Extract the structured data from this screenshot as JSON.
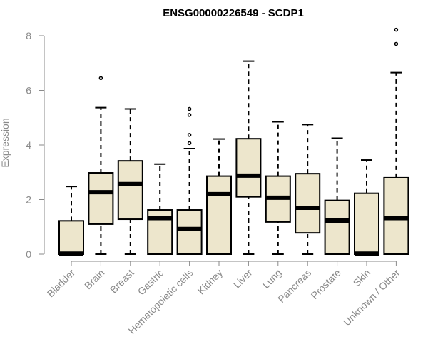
{
  "chart_data": {
    "type": "boxplot",
    "title": "ENSG00000226549 - SCDP1",
    "xlabel": "",
    "ylabel": "Expression",
    "ylim": [
      0,
      8
    ],
    "yticks": [
      0,
      2,
      4,
      6,
      8
    ],
    "categories": [
      "Bladder",
      "Brain",
      "Breast",
      "Gastric",
      "Hematopoietic cells",
      "Kidney",
      "Liver",
      "Lung",
      "Pancreas",
      "Prostate",
      "Skin",
      "Unknown / Other"
    ],
    "boxes": [
      {
        "category": "Bladder",
        "min": 0,
        "q1": 0,
        "median": 0.02,
        "q3": 1.22,
        "max": 2.48,
        "outliers": []
      },
      {
        "category": "Brain",
        "min": 0,
        "q1": 1.1,
        "median": 2.27,
        "q3": 2.98,
        "max": 5.37,
        "outliers": [
          6.45
        ]
      },
      {
        "category": "Breast",
        "min": 0,
        "q1": 1.28,
        "median": 2.57,
        "q3": 3.42,
        "max": 5.32,
        "outliers": []
      },
      {
        "category": "Gastric",
        "min": 0,
        "q1": 0,
        "median": 1.32,
        "q3": 1.62,
        "max": 3.3,
        "outliers": []
      },
      {
        "category": "Hematopoietic cells",
        "min": 0,
        "q1": 0,
        "median": 0.92,
        "q3": 1.62,
        "max": 3.87,
        "outliers": [
          4.07,
          4.37,
          5.1,
          5.32
        ]
      },
      {
        "category": "Kidney",
        "min": 0,
        "q1": 0,
        "median": 2.2,
        "q3": 2.86,
        "max": 4.22,
        "outliers": []
      },
      {
        "category": "Liver",
        "min": 0,
        "q1": 2.1,
        "median": 2.88,
        "q3": 4.23,
        "max": 7.07,
        "outliers": []
      },
      {
        "category": "Lung",
        "min": 0,
        "q1": 1.18,
        "median": 2.07,
        "q3": 2.86,
        "max": 4.85,
        "outliers": []
      },
      {
        "category": "Pancreas",
        "min": 0,
        "q1": 0.78,
        "median": 1.7,
        "q3": 2.95,
        "max": 4.75,
        "outliers": []
      },
      {
        "category": "Prostate",
        "min": 0,
        "q1": 0,
        "median": 1.23,
        "q3": 1.97,
        "max": 4.25,
        "outliers": []
      },
      {
        "category": "Skin",
        "min": 0,
        "q1": 0,
        "median": 0.02,
        "q3": 2.23,
        "max": 3.45,
        "outliers": []
      },
      {
        "category": "Unknown / Other",
        "min": 0,
        "q1": 0,
        "median": 1.32,
        "q3": 2.8,
        "max": 6.65,
        "outliers": [
          7.7,
          8.22
        ]
      }
    ],
    "box_fill": "#ede6cc",
    "box_stroke": "#000000",
    "axis_color": "#8a8a8a",
    "grid": false,
    "legend": "none"
  }
}
